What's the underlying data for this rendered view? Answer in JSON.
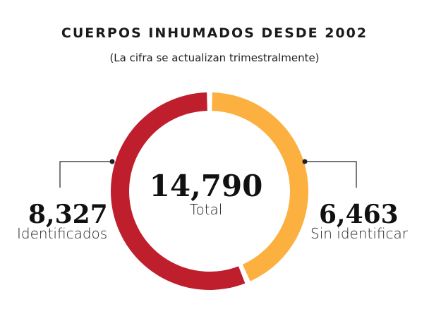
{
  "chart_data": {
    "type": "pie",
    "title": "CUERPOS INHUMADOS DESDE 2002",
    "subtitle": "(La cifra se actualizan trimestralmente)",
    "total": {
      "value": "14,790",
      "label": "Total"
    },
    "slices": [
      {
        "name": "Sin identificar",
        "value": 6463,
        "value_label": "6,463",
        "color": "#FBB040"
      },
      {
        "name": "Identificados",
        "value": 8327,
        "value_label": "8,327",
        "color": "#BF1E2D"
      }
    ]
  }
}
